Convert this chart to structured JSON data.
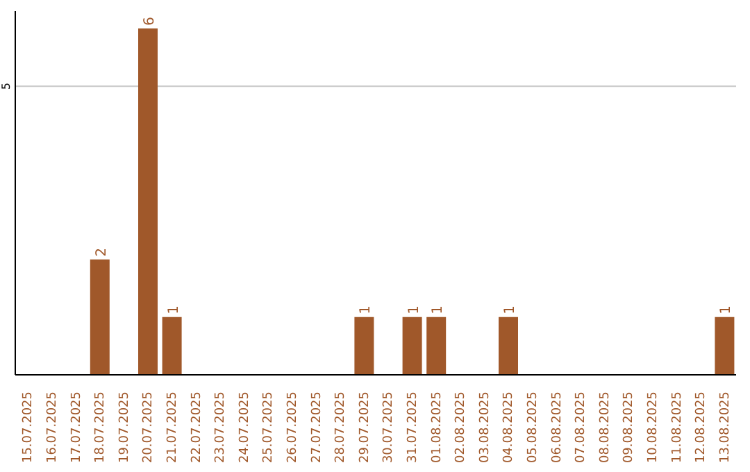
{
  "chart_data": {
    "type": "bar",
    "categories": [
      "15.07.2025",
      "16.07.2025",
      "17.07.2025",
      "18.07.2025",
      "19.07.2025",
      "20.07.2025",
      "21.07.2025",
      "22.07.2025",
      "23.07.2025",
      "24.07.2025",
      "25.07.2025",
      "26.07.2025",
      "27.07.2025",
      "28.07.2025",
      "29.07.2025",
      "30.07.2025",
      "31.07.2025",
      "01.08.2025",
      "02.08.2025",
      "03.08.2025",
      "04.08.2025",
      "05.08.2025",
      "06.08.2025",
      "07.08.2025",
      "08.08.2025",
      "09.08.2025",
      "10.08.2025",
      "11.08.2025",
      "12.08.2025",
      "13.08.2025"
    ],
    "values": [
      null,
      null,
      null,
      2,
      null,
      6,
      1,
      null,
      null,
      null,
      null,
      null,
      null,
      null,
      1,
      null,
      1,
      1,
      null,
      null,
      1,
      null,
      null,
      null,
      null,
      null,
      null,
      null,
      null,
      1
    ],
    "color": "#a0582a",
    "ylim": [
      0,
      6.3
    ],
    "yticks": [
      5
    ],
    "grid": "y",
    "data_labels": true
  }
}
